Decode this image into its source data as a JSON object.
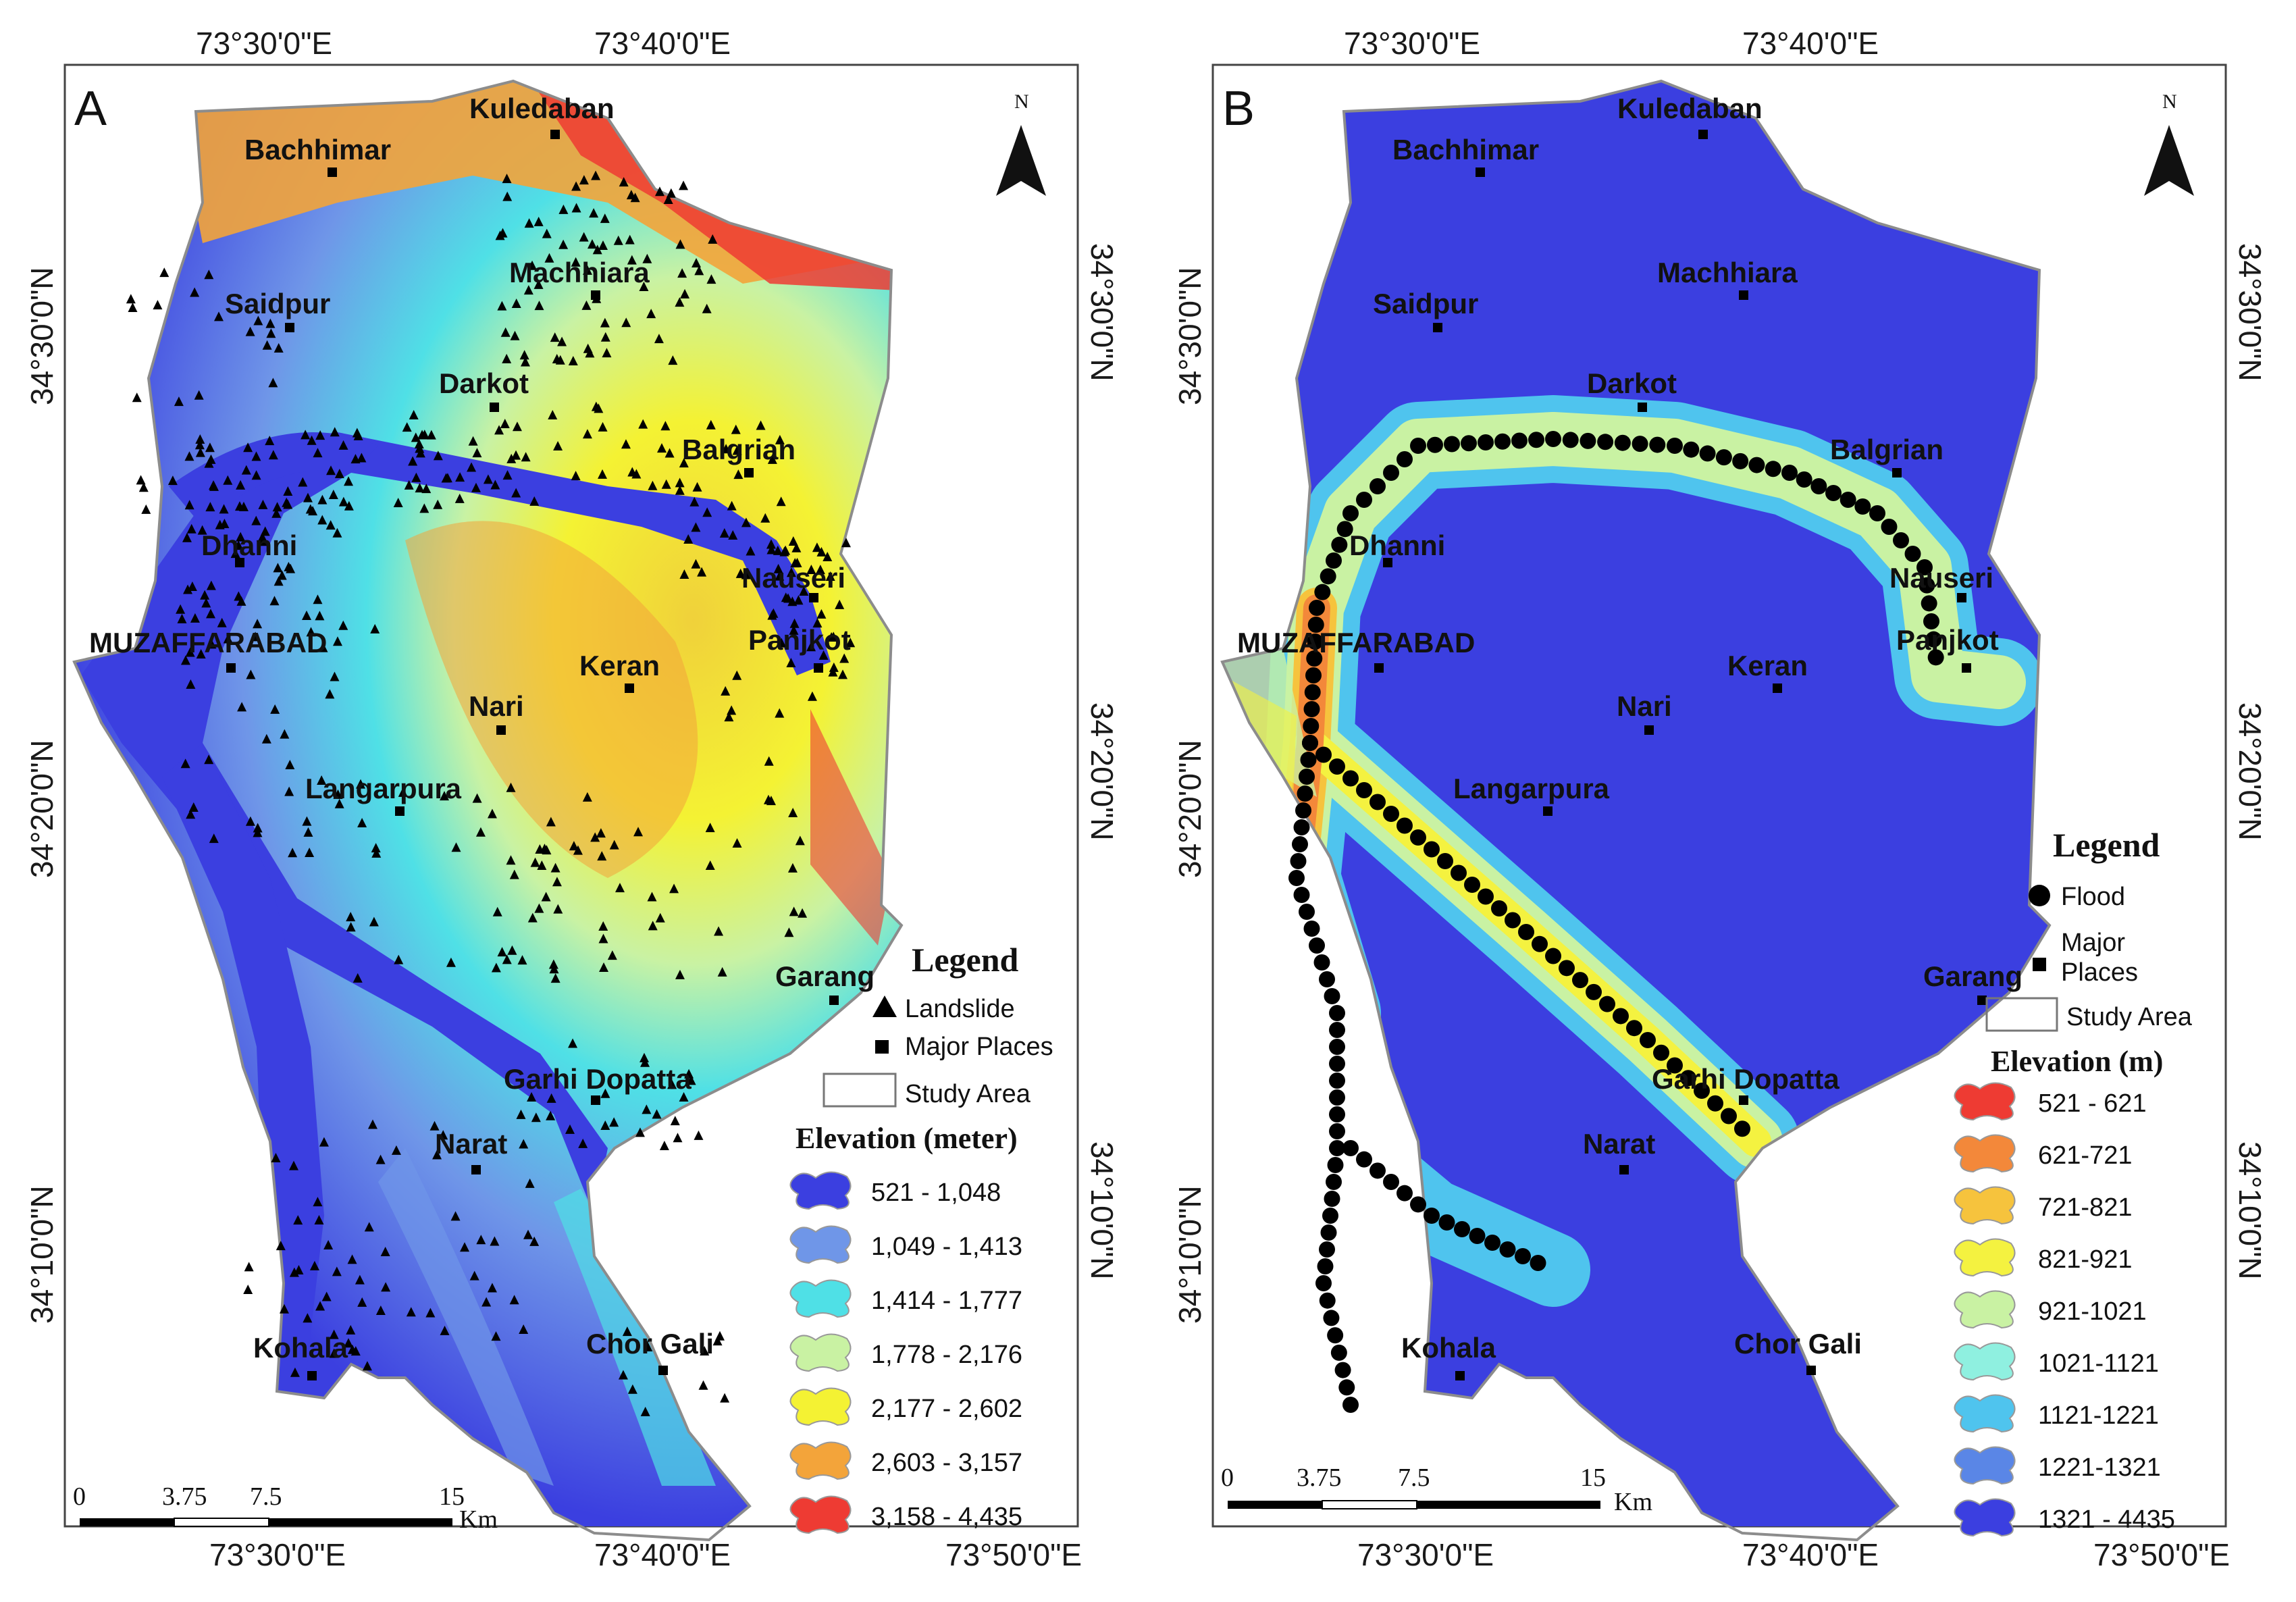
{
  "panels": [
    {
      "letter": "A",
      "coords": {
        "top_left": "73°30'0\"E",
        "top_right": "73°40'0\"E",
        "bottom_left": "73°30'0\"E",
        "bottom_mid": "73°40'0\"E",
        "bottom_right": "73°50'0\"E",
        "left_upper": "34°30'0\"N",
        "left_mid": "34°20'0\"N",
        "left_lower": "34°10'0\"N",
        "right_upper": "34°30'0\"N",
        "right_mid": "34°20'0\"N",
        "right_lower": "34°10'0\"N"
      },
      "north": "N",
      "places": [
        "Kuledaban",
        "Bachhimar",
        "Machhiara",
        "Saidpur",
        "Darkot",
        "Balgrian",
        "Dhanni",
        "Nauseri",
        "MUZAFFARABAD",
        "Panjkot",
        "Keran",
        "Nari",
        "Langarpura",
        "Garang",
        "Garhi Dopatta",
        "Narat",
        "Kohala",
        "Chor Gali"
      ],
      "legend": {
        "title": "Legend",
        "items": [
          "Landslide",
          "Major Places",
          "Study Area"
        ],
        "elevation_title": "Elevation (meter)",
        "classes": [
          "521 - 1,048",
          "1,049 - 1,413",
          "1,414 - 1,777",
          "1,778 - 2,176",
          "2,177 - 2,602",
          "2,603 - 3,157",
          "3,158 - 4,435"
        ],
        "class_colors": [
          "#3b3fe0",
          "#6f96e8",
          "#4fe0e6",
          "#c9f2a3",
          "#f4f233",
          "#f3a43a",
          "#ee3b33"
        ]
      },
      "scale": {
        "t0": "0",
        "t1": "3.75",
        "t2": "7.5",
        "t3": "15",
        "unit": "Km"
      }
    },
    {
      "letter": "B",
      "coords": {
        "top_left": "73°30'0\"E",
        "top_right": "73°40'0\"E",
        "bottom_left": "73°30'0\"E",
        "bottom_mid": "73°40'0\"E",
        "bottom_right": "73°50'0\"E",
        "left_upper": "34°30'0\"N",
        "left_mid": "34°20'0\"N",
        "left_lower": "34°10'0\"N",
        "right_upper": "34°30'0\"N",
        "right_mid": "34°20'0\"N",
        "right_lower": "34°10'0\"N"
      },
      "north": "N",
      "places": [
        "Kuledaban",
        "Bachhimar",
        "Machhiara",
        "Saidpur",
        "Darkot",
        "Balgrian",
        "Dhanni",
        "Nauseri",
        "MUZAFFARABAD",
        "Panjkot",
        "Keran",
        "Nari",
        "Langarpura",
        "Garang",
        "Garhi Dopatta",
        "Narat",
        "Kohala",
        "Chor Gali"
      ],
      "legend": {
        "title": "Legend",
        "items": [
          "Flood",
          "Major",
          "Places",
          "Study Area"
        ],
        "elevation_title": "Elevation (m)",
        "classes": [
          "521 - 621",
          "621-721",
          "721-821",
          "821-921",
          "921-1021",
          "1021-1121",
          "1121-1221",
          "1221-1321",
          "1321 - 4435"
        ],
        "class_colors": [
          "#ee3b33",
          "#f3883a",
          "#f6c33d",
          "#f4f240",
          "#c9f2a3",
          "#8ff0e0",
          "#4fc4ee",
          "#5a86e6",
          "#3b3fe0"
        ]
      },
      "scale": {
        "t0": "0",
        "t1": "3.75",
        "t2": "7.5",
        "t3": "15",
        "unit": "Km"
      }
    }
  ]
}
